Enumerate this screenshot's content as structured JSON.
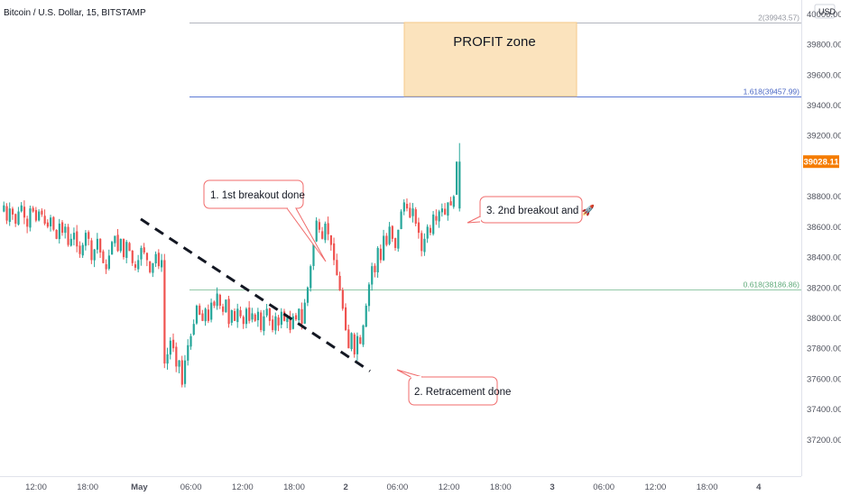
{
  "title": "Bitcoin / U.S. Dollar, 15, BITSTAMP",
  "currency": "USD",
  "colors": {
    "up": "#26a69a",
    "down": "#ef5350",
    "level_top": "#b2b5be",
    "level_fib1618": "#5d7bd5",
    "level_fib0618": "#93c9a8",
    "profit_zone_fill": "#fbe3bd",
    "profit_zone_stroke": "#f5c98a",
    "note_border": "#f06b6b",
    "price_tag": "#f57c00"
  },
  "chart_data": {
    "type": "candlestick",
    "y_ticks": [
      "40000.00",
      "39800.00",
      "39600.00",
      "39400.00",
      "39200.00",
      "38800.00",
      "38600.00",
      "38400.00",
      "38200.00",
      "38000.00",
      "37800.00",
      "37600.00",
      "37400.00",
      "37200.00"
    ],
    "x_ticks": [
      "12:00",
      "18:00",
      "May",
      "06:00",
      "12:00",
      "18:00",
      "2",
      "06:00",
      "12:00",
      "18:00",
      "3",
      "06:00",
      "12:00",
      "18:00",
      "4"
    ],
    "ylim": [
      37000,
      40050
    ],
    "current_price": "39028.11",
    "levels": [
      {
        "label": "2(39943.57)",
        "value": 39943.57
      },
      {
        "label": "1.618(39457.99)",
        "value": 39457.99
      },
      {
        "label": "0.618(38186.86)",
        "value": 38186.86
      }
    ],
    "profit_zone": {
      "label": "PROFIT zone",
      "from": 39457.99,
      "to": 39943.57
    },
    "trendline": {
      "from_price": 38650,
      "to_price": 37650
    },
    "annotations": [
      {
        "text": "1. 1st breakout done"
      },
      {
        "text": "3. 2nd breakout and 🚀"
      },
      {
        "text": "2. Retracement done"
      }
    ],
    "ohlc_path": [
      38700,
      38740,
      38640,
      38720,
      38680,
      38620,
      38700,
      38740,
      38660,
      38600,
      38720,
      38700,
      38640,
      38700,
      38680,
      38620,
      38600,
      38660,
      38580,
      38520,
      38620,
      38560,
      38600,
      38480,
      38520,
      38560,
      38470,
      38420,
      38480,
      38560,
      38520,
      38380,
      38450,
      38520,
      38430,
      38360,
      38320,
      38410,
      38500,
      38540,
      38440,
      38520,
      38400,
      38500,
      38440,
      38360,
      38330,
      38380,
      38460,
      38430,
      38380,
      38300,
      38360,
      38420,
      38340,
      38380,
      37700,
      37760,
      37850,
      37800,
      37680,
      37720,
      37560,
      37720,
      37820,
      37880,
      37960,
      38080,
      38020,
      37980,
      38060,
      37980,
      38100,
      38080,
      38160,
      38080,
      38040,
      38120,
      37960,
      38050,
      37980,
      38060,
      38010,
      37960,
      38060,
      37980,
      38030,
      37980,
      38040,
      37920,
      38010,
      38060,
      37980,
      37920,
      38010,
      37950,
      38040,
      37980,
      38000,
      37920,
      38010,
      37990,
      38060,
      37960,
      38100,
      38200,
      38340,
      38500,
      38640,
      38580,
      38520,
      38620,
      38550,
      38480,
      38380,
      38280,
      38180,
      38060,
      37920,
      37800,
      37900,
      37760,
      37880,
      37830,
      37950,
      38080,
      38220,
      38340,
      38300,
      38460,
      38380,
      38540,
      38480,
      38600,
      38520,
      38460,
      38580,
      38700,
      38760,
      38720,
      38660,
      38720,
      38620,
      38560,
      38440,
      38520,
      38600,
      38560,
      38680,
      38640,
      38700,
      38720,
      38680,
      38760,
      38740,
      38800,
      39028
    ]
  }
}
